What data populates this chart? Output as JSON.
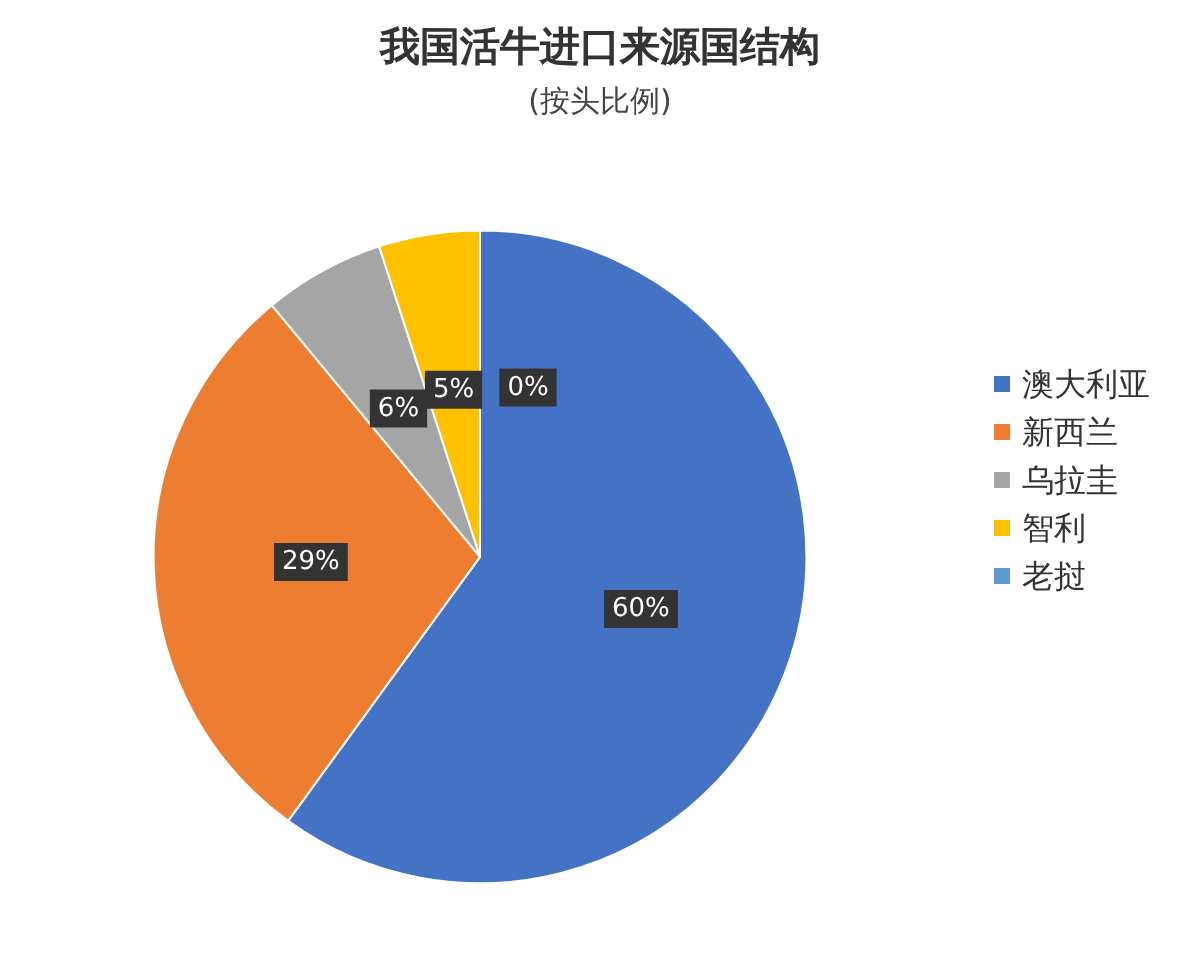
{
  "chart_data": {
    "type": "pie",
    "title": "我国活牛进口来源国结构",
    "subtitle": "(按头比例)",
    "categories": [
      "澳大利亚",
      "新西兰",
      "乌拉圭",
      "智利",
      "老挝"
    ],
    "values": [
      60,
      29,
      6,
      5,
      0
    ],
    "colors": [
      "#4472c4",
      "#ed7d31",
      "#a5a5a5",
      "#ffc000",
      "#5b9bd5"
    ],
    "value_labels": [
      "60%",
      "29%",
      "6%",
      "5%",
      "0%"
    ],
    "legend": "right"
  }
}
